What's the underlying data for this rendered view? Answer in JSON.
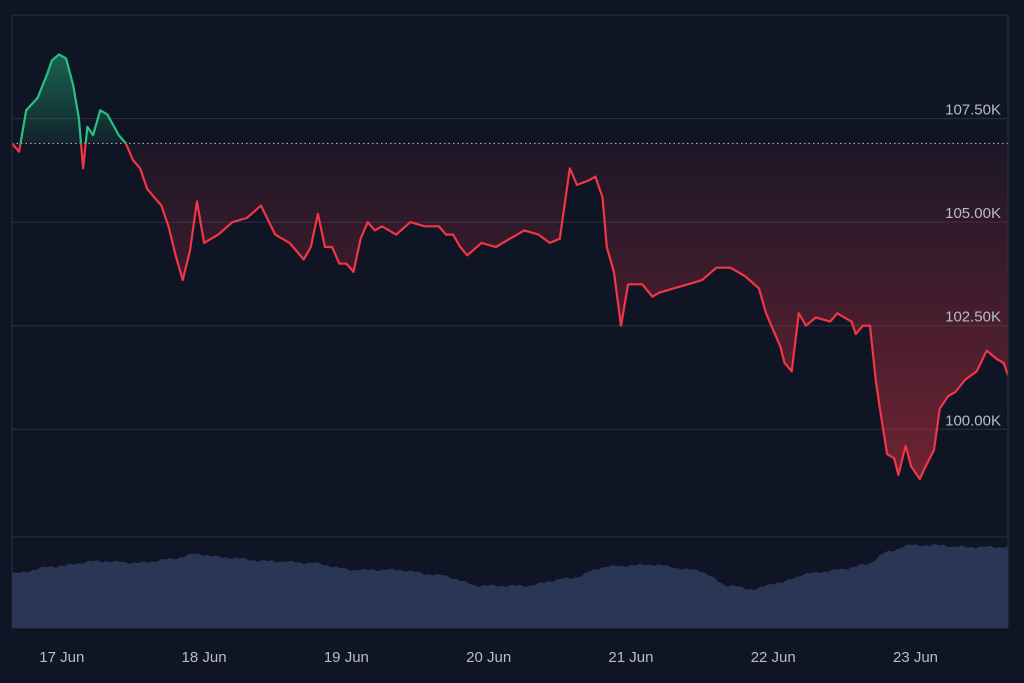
{
  "chart_data": {
    "type": "line",
    "y_ticks": [
      {
        "value": 100000,
        "label": "100.00K"
      },
      {
        "value": 102500,
        "label": "102.50K"
      },
      {
        "value": 105000,
        "label": "105.00K"
      },
      {
        "value": 107500,
        "label": "107.50K"
      }
    ],
    "x_ticks": [
      {
        "day": 0.35,
        "label": "17 Jun"
      },
      {
        "day": 1.35,
        "label": "18 Jun"
      },
      {
        "day": 2.35,
        "label": "19 Jun"
      },
      {
        "day": 3.35,
        "label": "20 Jun"
      },
      {
        "day": 4.35,
        "label": "21 Jun"
      },
      {
        "day": 5.35,
        "label": "22 Jun"
      },
      {
        "day": 6.35,
        "label": "23 Jun"
      }
    ],
    "x_range": [
      0,
      7
    ],
    "ylim": [
      97400,
      110000
    ],
    "baseline": 106900,
    "colors": {
      "above": "#26c281",
      "below": "#f23645",
      "baseline_line": "#a8adb8",
      "grid": "#2a3140",
      "volume": "#2b3656",
      "background": "#0f1525"
    },
    "price": [
      [
        0.0,
        106900
      ],
      [
        0.05,
        106700
      ],
      [
        0.1,
        107700
      ],
      [
        0.18,
        108000
      ],
      [
        0.25,
        108600
      ],
      [
        0.28,
        108900
      ],
      [
        0.33,
        109050
      ],
      [
        0.38,
        108950
      ],
      [
        0.43,
        108300
      ],
      [
        0.47,
        107500
      ],
      [
        0.5,
        106300
      ],
      [
        0.53,
        107300
      ],
      [
        0.57,
        107100
      ],
      [
        0.62,
        107700
      ],
      [
        0.67,
        107600
      ],
      [
        0.75,
        107100
      ],
      [
        0.8,
        106900
      ],
      [
        0.85,
        106500
      ],
      [
        0.9,
        106300
      ],
      [
        0.95,
        105800
      ],
      [
        1.0,
        105600
      ],
      [
        1.05,
        105400
      ],
      [
        1.1,
        104900
      ],
      [
        1.15,
        104200
      ],
      [
        1.2,
        103600
      ],
      [
        1.25,
        104300
      ],
      [
        1.3,
        105500
      ],
      [
        1.35,
        104500
      ],
      [
        1.4,
        104600
      ],
      [
        1.45,
        104700
      ],
      [
        1.55,
        105000
      ],
      [
        1.65,
        105100
      ],
      [
        1.75,
        105400
      ],
      [
        1.85,
        104700
      ],
      [
        1.95,
        104500
      ],
      [
        2.0,
        104300
      ],
      [
        2.05,
        104100
      ],
      [
        2.1,
        104400
      ],
      [
        2.15,
        105200
      ],
      [
        2.2,
        104400
      ],
      [
        2.25,
        104400
      ],
      [
        2.3,
        104000
      ],
      [
        2.35,
        104000
      ],
      [
        2.4,
        103800
      ],
      [
        2.45,
        104600
      ],
      [
        2.5,
        105000
      ],
      [
        2.55,
        104800
      ],
      [
        2.6,
        104900
      ],
      [
        2.7,
        104700
      ],
      [
        2.8,
        105000
      ],
      [
        2.9,
        104900
      ],
      [
        3.0,
        104900
      ],
      [
        3.05,
        104700
      ],
      [
        3.1,
        104700
      ],
      [
        3.15,
        104400
      ],
      [
        3.2,
        104200
      ],
      [
        3.3,
        104500
      ],
      [
        3.4,
        104400
      ],
      [
        3.5,
        104600
      ],
      [
        3.6,
        104800
      ],
      [
        3.7,
        104700
      ],
      [
        3.78,
        104500
      ],
      [
        3.85,
        104600
      ],
      [
        3.92,
        106300
      ],
      [
        3.97,
        105900
      ],
      [
        4.05,
        106000
      ],
      [
        4.1,
        106100
      ],
      [
        4.15,
        105600
      ],
      [
        4.18,
        104400
      ],
      [
        4.23,
        103800
      ],
      [
        4.28,
        102500
      ],
      [
        4.33,
        103500
      ],
      [
        4.38,
        103500
      ],
      [
        4.43,
        103500
      ],
      [
        4.5,
        103200
      ],
      [
        4.55,
        103300
      ],
      [
        4.65,
        103400
      ],
      [
        4.75,
        103500
      ],
      [
        4.85,
        103600
      ],
      [
        4.95,
        103900
      ],
      [
        5.05,
        103900
      ],
      [
        5.15,
        103700
      ],
      [
        5.25,
        103400
      ],
      [
        5.3,
        102800
      ],
      [
        5.35,
        102400
      ],
      [
        5.4,
        102000
      ],
      [
        5.43,
        101600
      ],
      [
        5.48,
        101400
      ],
      [
        5.53,
        102800
      ],
      [
        5.58,
        102500
      ],
      [
        5.65,
        102700
      ],
      [
        5.75,
        102600
      ],
      [
        5.8,
        102800
      ],
      [
        5.85,
        102700
      ],
      [
        5.9,
        102600
      ],
      [
        5.93,
        102300
      ],
      [
        5.98,
        102500
      ],
      [
        6.03,
        102500
      ],
      [
        6.07,
        101200
      ],
      [
        6.1,
        100500
      ],
      [
        6.15,
        99400
      ],
      [
        6.2,
        99300
      ],
      [
        6.23,
        98900
      ],
      [
        6.28,
        99600
      ],
      [
        6.32,
        99100
      ],
      [
        6.38,
        98800
      ],
      [
        6.42,
        99100
      ],
      [
        6.48,
        99500
      ],
      [
        6.52,
        100500
      ],
      [
        6.58,
        100800
      ],
      [
        6.63,
        100900
      ],
      [
        6.7,
        101200
      ],
      [
        6.78,
        101400
      ],
      [
        6.85,
        101900
      ],
      [
        6.92,
        101700
      ],
      [
        6.97,
        101600
      ],
      [
        7.0,
        101300
      ]
    ],
    "volume": [
      [
        0.0,
        0.62
      ],
      [
        0.3,
        0.7
      ],
      [
        0.6,
        0.76
      ],
      [
        0.9,
        0.74
      ],
      [
        1.1,
        0.78
      ],
      [
        1.3,
        0.84
      ],
      [
        1.5,
        0.8
      ],
      [
        1.8,
        0.76
      ],
      [
        2.1,
        0.74
      ],
      [
        2.4,
        0.66
      ],
      [
        2.7,
        0.66
      ],
      [
        3.0,
        0.6
      ],
      [
        3.3,
        0.48
      ],
      [
        3.6,
        0.48
      ],
      [
        3.9,
        0.56
      ],
      [
        4.2,
        0.7
      ],
      [
        4.5,
        0.72
      ],
      [
        4.8,
        0.66
      ],
      [
        5.05,
        0.48
      ],
      [
        5.2,
        0.44
      ],
      [
        5.4,
        0.52
      ],
      [
        5.6,
        0.62
      ],
      [
        5.8,
        0.66
      ],
      [
        6.0,
        0.72
      ],
      [
        6.15,
        0.86
      ],
      [
        6.3,
        0.94
      ],
      [
        6.5,
        0.94
      ],
      [
        6.7,
        0.92
      ],
      [
        7.0,
        0.92
      ]
    ]
  }
}
